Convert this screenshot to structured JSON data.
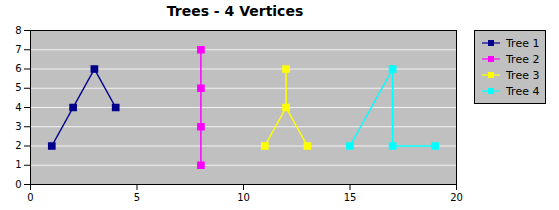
{
  "chart_data": {
    "type": "line",
    "title": "Trees - 4 Vertices",
    "xlim": [
      0,
      20
    ],
    "ylim": [
      0,
      8
    ],
    "xticks": [
      0,
      5,
      10,
      15,
      20
    ],
    "yticks": [
      0,
      1,
      2,
      3,
      4,
      5,
      6,
      7,
      8
    ],
    "grid": "y",
    "legend": "right",
    "marker": "square",
    "series": [
      {
        "name": "Tree 1",
        "color": "#00008B",
        "segments": [
          [
            [
              1,
              2
            ],
            [
              2,
              4
            ]
          ],
          [
            [
              2,
              4
            ],
            [
              3,
              6
            ]
          ],
          [
            [
              3,
              6
            ],
            [
              4,
              4
            ]
          ]
        ],
        "points": [
          [
            1,
            2
          ],
          [
            2,
            4
          ],
          [
            3,
            6
          ],
          [
            4,
            4
          ]
        ]
      },
      {
        "name": "Tree 2",
        "color": "#FF00FF",
        "segments": [
          [
            [
              8,
              1
            ],
            [
              8,
              3
            ]
          ],
          [
            [
              8,
              3
            ],
            [
              8,
              5
            ]
          ],
          [
            [
              8,
              5
            ],
            [
              8,
              7
            ]
          ]
        ],
        "points": [
          [
            8,
            1
          ],
          [
            8,
            3
          ],
          [
            8,
            5
          ],
          [
            8,
            7
          ]
        ]
      },
      {
        "name": "Tree 3",
        "color": "#FFFF00",
        "segments": [
          [
            [
              11,
              2
            ],
            [
              12,
              4
            ]
          ],
          [
            [
              12,
              4
            ],
            [
              12,
              6
            ]
          ],
          [
            [
              12,
              4
            ],
            [
              13,
              2
            ]
          ]
        ],
        "points": [
          [
            11,
            2
          ],
          [
            12,
            4
          ],
          [
            12,
            6
          ],
          [
            13,
            2
          ]
        ]
      },
      {
        "name": "Tree 4",
        "color": "#00FFFF",
        "segments": [
          [
            [
              15,
              2
            ],
            [
              17,
              6
            ]
          ],
          [
            [
              17,
              6
            ],
            [
              17,
              2
            ]
          ],
          [
            [
              17,
              2
            ],
            [
              19,
              2
            ]
          ]
        ],
        "points": [
          [
            15,
            2
          ],
          [
            17,
            6
          ],
          [
            17,
            2
          ],
          [
            19,
            2
          ]
        ]
      }
    ]
  }
}
